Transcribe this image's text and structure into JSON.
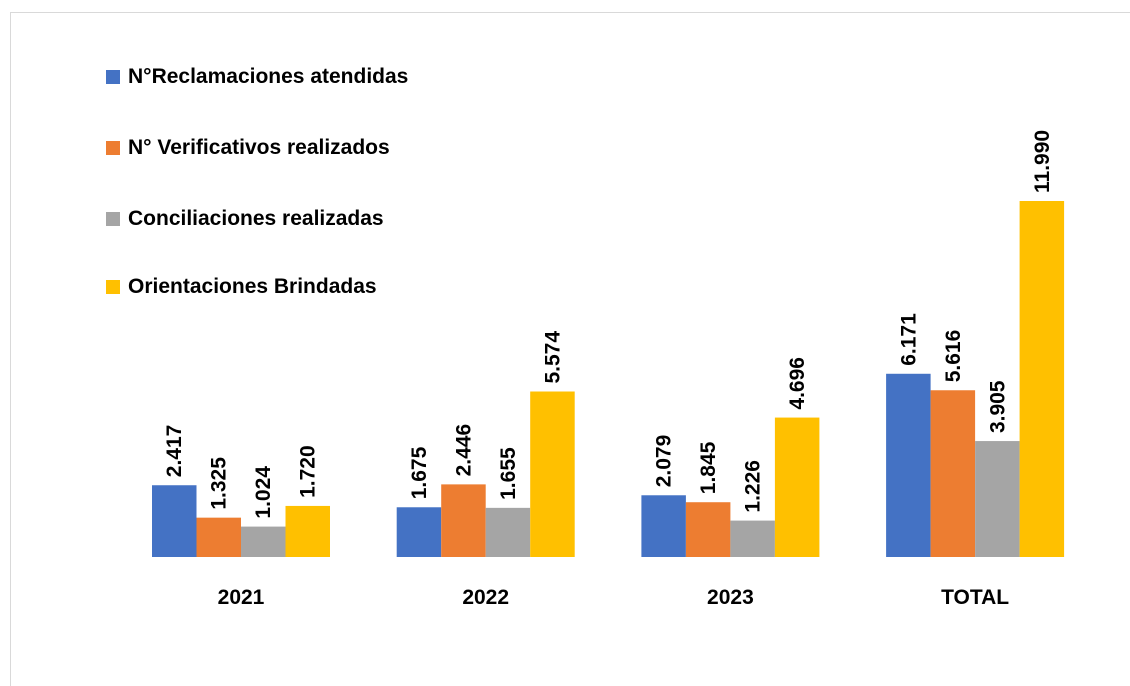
{
  "chart_data": {
    "type": "bar",
    "categories": [
      "2021",
      "2022",
      "2023",
      "TOTAL"
    ],
    "series": [
      {
        "name": "N°Reclamaciones atendidas",
        "color": "#4472c4",
        "values": [
          2417,
          1675,
          2079,
          6171
        ],
        "value_labels": [
          "2.417",
          "1.675",
          "2.079",
          "6.171"
        ]
      },
      {
        "name": "N° Verificativos realizados",
        "color": "#ed7d31",
        "values": [
          1325,
          2446,
          1845,
          5616
        ],
        "value_labels": [
          "1.325",
          "2.446",
          "1.845",
          "5.616"
        ]
      },
      {
        "name": "Conciliaciones realizadas",
        "color": "#a5a5a5",
        "values": [
          1024,
          1655,
          1226,
          3905
        ],
        "value_labels": [
          "1.024",
          "1.655",
          "1.226",
          "3.905"
        ]
      },
      {
        "name": "Orientaciones Brindadas",
        "color": "#ffc000",
        "values": [
          1720,
          5574,
          4696,
          11990
        ],
        "value_labels": [
          "1.720",
          "5.574",
          "4.696",
          "11.990"
        ]
      }
    ],
    "legend": "top-left"
  }
}
